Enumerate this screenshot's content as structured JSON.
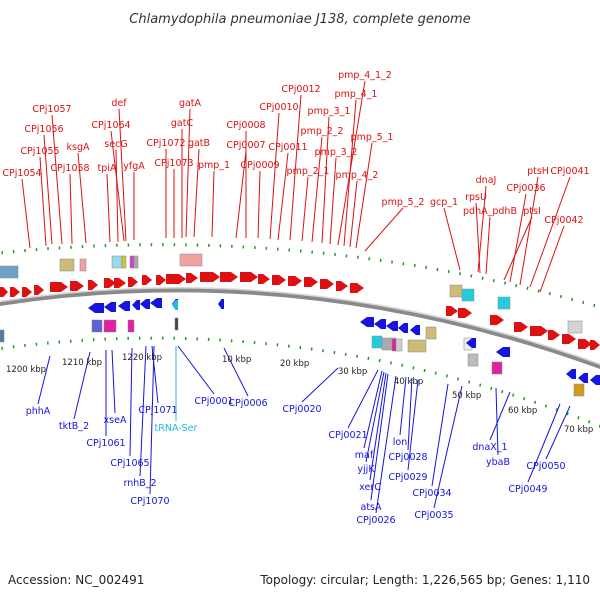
{
  "title": "Chlamydophila pneumoniae J138, complete genome",
  "footer": {
    "accession": "Accession: NC_002491",
    "summary": "Topology: circular; Length: 1,226,565 bp; Genes: 1,110"
  },
  "colors": {
    "forward": "#dd1111",
    "reverse": "#1515dd",
    "rna": "#22bbdd",
    "backbone": "#8a8a8a",
    "ticks": "#229922"
  },
  "scale_labels": [
    "1200 kbp",
    "1210 kbp",
    "1220 kbp",
    "10 kbp",
    "20 kbp",
    "30 kbp",
    "40 kbp",
    "50 kbp",
    "60 kbp",
    "70 kbp"
  ],
  "forward_genes": [
    "CPj1054",
    "CPj1055",
    "CPj1056",
    "CPj1057",
    "CPj1058",
    "ksgA",
    "tpiA",
    "secG",
    "CPj1064",
    "def",
    "yfgA",
    "CPj1072",
    "CPj1073",
    "gatC",
    "gatA",
    "gatB",
    "pmp_1",
    "CPj0007",
    "CPj0008",
    "CPj0009",
    "CPj0010",
    "CPj0011",
    "CPj0012",
    "pmp_2_1",
    "pmp_2_2",
    "pmp_3_1",
    "pmp_3_2",
    "pmp_4_1_2",
    "pmp_4_1",
    "pmp_4_2",
    "pmp_5_1",
    "pmp_5_2",
    "gcp_1",
    "dnaJ",
    "rpsU",
    "pdhA_pdhB",
    "ptsI",
    "CPj0036",
    "ptsH",
    "CPj0041",
    "CPj0042"
  ],
  "reverse_genes": [
    "phhA",
    "tktB_2",
    "CPj1061",
    "xseA",
    "CPj1065",
    "rnhB_2",
    "CPj1071",
    "CPj1070",
    "tRNA-Ser",
    "CPj0001",
    "CPj0006",
    "CPj0020",
    "CPj0021",
    "maf",
    "yjjK",
    "xerC",
    "atsA",
    "CPj0026",
    "lon",
    "CPj0028",
    "CPj0029",
    "CPj0034",
    "CPj0035",
    "ybaB",
    "dnaX_1",
    "CPj0049",
    "CPj0050"
  ]
}
